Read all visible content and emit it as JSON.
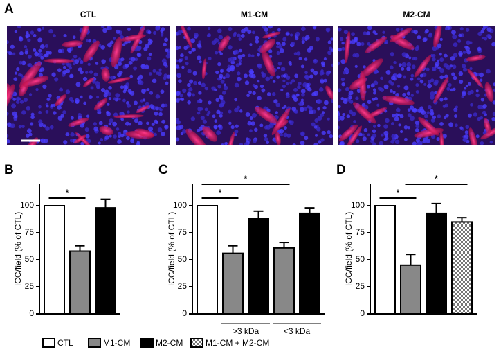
{
  "figure": {
    "panel_a": {
      "label": "A",
      "images": [
        "CTL",
        "M1-CM",
        "M2-CM"
      ]
    },
    "legend": [
      {
        "name": "CTL",
        "color": "#ffffff"
      },
      {
        "name": "M1-CM",
        "color": "#888888"
      },
      {
        "name": "M2-CM",
        "color": "#000000"
      },
      {
        "name": "M1-CM + M2-CM",
        "color": "checkerboard"
      }
    ]
  },
  "chart_data": [
    {
      "type": "bar",
      "panel": "B",
      "y_label": "ICC/field (% of CTL)",
      "categories": [
        null,
        null,
        null
      ],
      "values": [
        100,
        58,
        98
      ],
      "errors": [
        0,
        5,
        8
      ],
      "colors": [
        "#ffffff",
        "#888888",
        "#000000"
      ],
      "ylim": [
        0,
        120
      ],
      "yticks": [
        0,
        25,
        50,
        75,
        100
      ],
      "significance": [
        {
          "label": "*",
          "between": [
            0,
            1
          ]
        }
      ]
    },
    {
      "type": "bar",
      "panel": "C",
      "y_label": "ICC/field (% of CTL)",
      "categories": [
        null,
        null,
        null,
        null,
        null
      ],
      "values": [
        100,
        56,
        88,
        61,
        93
      ],
      "errors": [
        0,
        7,
        7,
        5,
        5
      ],
      "colors": [
        "#ffffff",
        "#888888",
        "#000000",
        "#888888",
        "#000000"
      ],
      "ylim": [
        0,
        120
      ],
      "yticks": [
        0,
        25,
        50,
        75,
        100
      ],
      "groups": [
        {
          "label": ">3 kDa",
          "span": [
            1,
            2
          ]
        },
        {
          "label": "<3 kDa",
          "span": [
            3,
            4
          ]
        }
      ],
      "significance": [
        {
          "label": "*",
          "between": [
            0,
            1
          ]
        },
        {
          "label": "*",
          "between": [
            0,
            3
          ]
        }
      ]
    },
    {
      "type": "bar",
      "panel": "D",
      "y_label": "ICC/field (% of  CTL)",
      "categories": [
        null,
        null,
        null,
        null
      ],
      "values": [
        100,
        45,
        93,
        85
      ],
      "errors": [
        0,
        10,
        9,
        4
      ],
      "colors": [
        "#ffffff",
        "#888888",
        "#000000",
        "checkerboard"
      ],
      "ylim": [
        0,
        120
      ],
      "yticks": [
        0,
        25,
        50,
        75,
        100
      ],
      "significance": [
        {
          "label": "*",
          "between": [
            0,
            1
          ]
        },
        {
          "label": "*",
          "between": [
            1,
            3
          ]
        }
      ]
    }
  ]
}
